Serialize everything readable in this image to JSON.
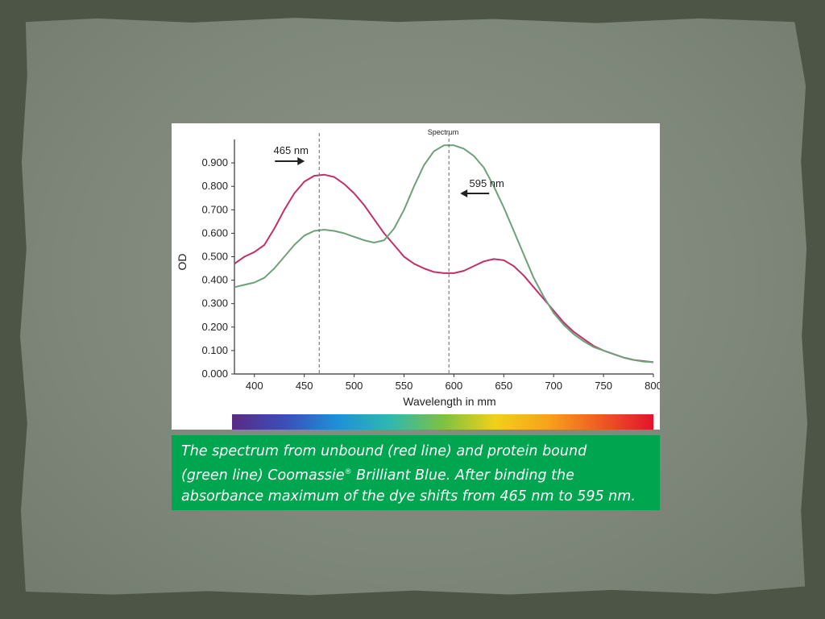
{
  "chart_data": {
    "type": "line",
    "title": "Spectrum",
    "xlabel": "Wavelength in mm",
    "ylabel": "OD",
    "xlim": [
      380,
      800
    ],
    "ylim": [
      0,
      1.0
    ],
    "x_ticks": [
      "400",
      "450",
      "500",
      "550",
      "600",
      "650",
      "700",
      "750",
      "800"
    ],
    "y_ticks": [
      "0.000",
      "0.100",
      "0.200",
      "0.300",
      "0.400",
      "0.500",
      "0.600",
      "0.700",
      "0.800",
      "0.900"
    ],
    "series": [
      {
        "color": "#c0306a",
        "points": [
          [
            380,
            0.47
          ],
          [
            390,
            0.5
          ],
          [
            400,
            0.52
          ],
          [
            410,
            0.55
          ],
          [
            420,
            0.62
          ],
          [
            430,
            0.7
          ],
          [
            440,
            0.77
          ],
          [
            450,
            0.82
          ],
          [
            460,
            0.845
          ],
          [
            470,
            0.85
          ],
          [
            480,
            0.84
          ],
          [
            490,
            0.81
          ],
          [
            500,
            0.77
          ],
          [
            510,
            0.72
          ],
          [
            520,
            0.66
          ],
          [
            530,
            0.6
          ],
          [
            540,
            0.55
          ],
          [
            550,
            0.5
          ],
          [
            560,
            0.47
          ],
          [
            570,
            0.45
          ],
          [
            580,
            0.435
          ],
          [
            590,
            0.43
          ],
          [
            600,
            0.43
          ],
          [
            610,
            0.44
          ],
          [
            620,
            0.46
          ],
          [
            630,
            0.48
          ],
          [
            640,
            0.49
          ],
          [
            650,
            0.485
          ],
          [
            660,
            0.46
          ],
          [
            670,
            0.42
          ],
          [
            680,
            0.37
          ],
          [
            690,
            0.32
          ],
          [
            700,
            0.27
          ],
          [
            710,
            0.22
          ],
          [
            720,
            0.18
          ],
          [
            730,
            0.15
          ],
          [
            740,
            0.12
          ],
          [
            750,
            0.1
          ],
          [
            760,
            0.085
          ],
          [
            770,
            0.07
          ],
          [
            780,
            0.06
          ],
          [
            790,
            0.055
          ],
          [
            800,
            0.05
          ]
        ]
      },
      {
        "color": "#6fa07a",
        "points": [
          [
            380,
            0.37
          ],
          [
            390,
            0.38
          ],
          [
            400,
            0.39
          ],
          [
            410,
            0.41
          ],
          [
            420,
            0.45
          ],
          [
            430,
            0.5
          ],
          [
            440,
            0.55
          ],
          [
            450,
            0.59
          ],
          [
            460,
            0.61
          ],
          [
            470,
            0.615
          ],
          [
            480,
            0.61
          ],
          [
            490,
            0.6
          ],
          [
            500,
            0.585
          ],
          [
            510,
            0.57
          ],
          [
            520,
            0.56
          ],
          [
            530,
            0.57
          ],
          [
            540,
            0.62
          ],
          [
            550,
            0.7
          ],
          [
            560,
            0.8
          ],
          [
            570,
            0.89
          ],
          [
            580,
            0.95
          ],
          [
            590,
            0.975
          ],
          [
            600,
            0.975
          ],
          [
            610,
            0.96
          ],
          [
            620,
            0.93
          ],
          [
            630,
            0.88
          ],
          [
            640,
            0.8
          ],
          [
            650,
            0.71
          ],
          [
            660,
            0.61
          ],
          [
            670,
            0.51
          ],
          [
            680,
            0.41
          ],
          [
            690,
            0.33
          ],
          [
            700,
            0.26
          ],
          [
            710,
            0.21
          ],
          [
            720,
            0.17
          ],
          [
            730,
            0.14
          ],
          [
            740,
            0.115
          ],
          [
            750,
            0.1
          ],
          [
            760,
            0.085
          ],
          [
            770,
            0.07
          ],
          [
            780,
            0.06
          ],
          [
            790,
            0.053
          ],
          [
            800,
            0.05
          ]
        ]
      }
    ],
    "annotations": [
      {
        "text": "465 nm",
        "x": 465,
        "arrow": "right"
      },
      {
        "text": "595 nm",
        "x": 595,
        "arrow": "left"
      }
    ],
    "spectrum_bar_colors": [
      "#5b2a86",
      "#3a4fb8",
      "#1e90d8",
      "#2fb8b0",
      "#7cc242",
      "#f2d019",
      "#f7a21b",
      "#ee5a24",
      "#e3132c"
    ]
  },
  "caption": {
    "line1": "The spectrum from unbound (red line) and protein bound",
    "line2a": "(green line) Coomassie",
    "line2sup": "®",
    "line2b": " Brilliant Blue. After binding the",
    "line3": "absorbance maximum of the dye shifts from 465 nm to 595 nm."
  }
}
